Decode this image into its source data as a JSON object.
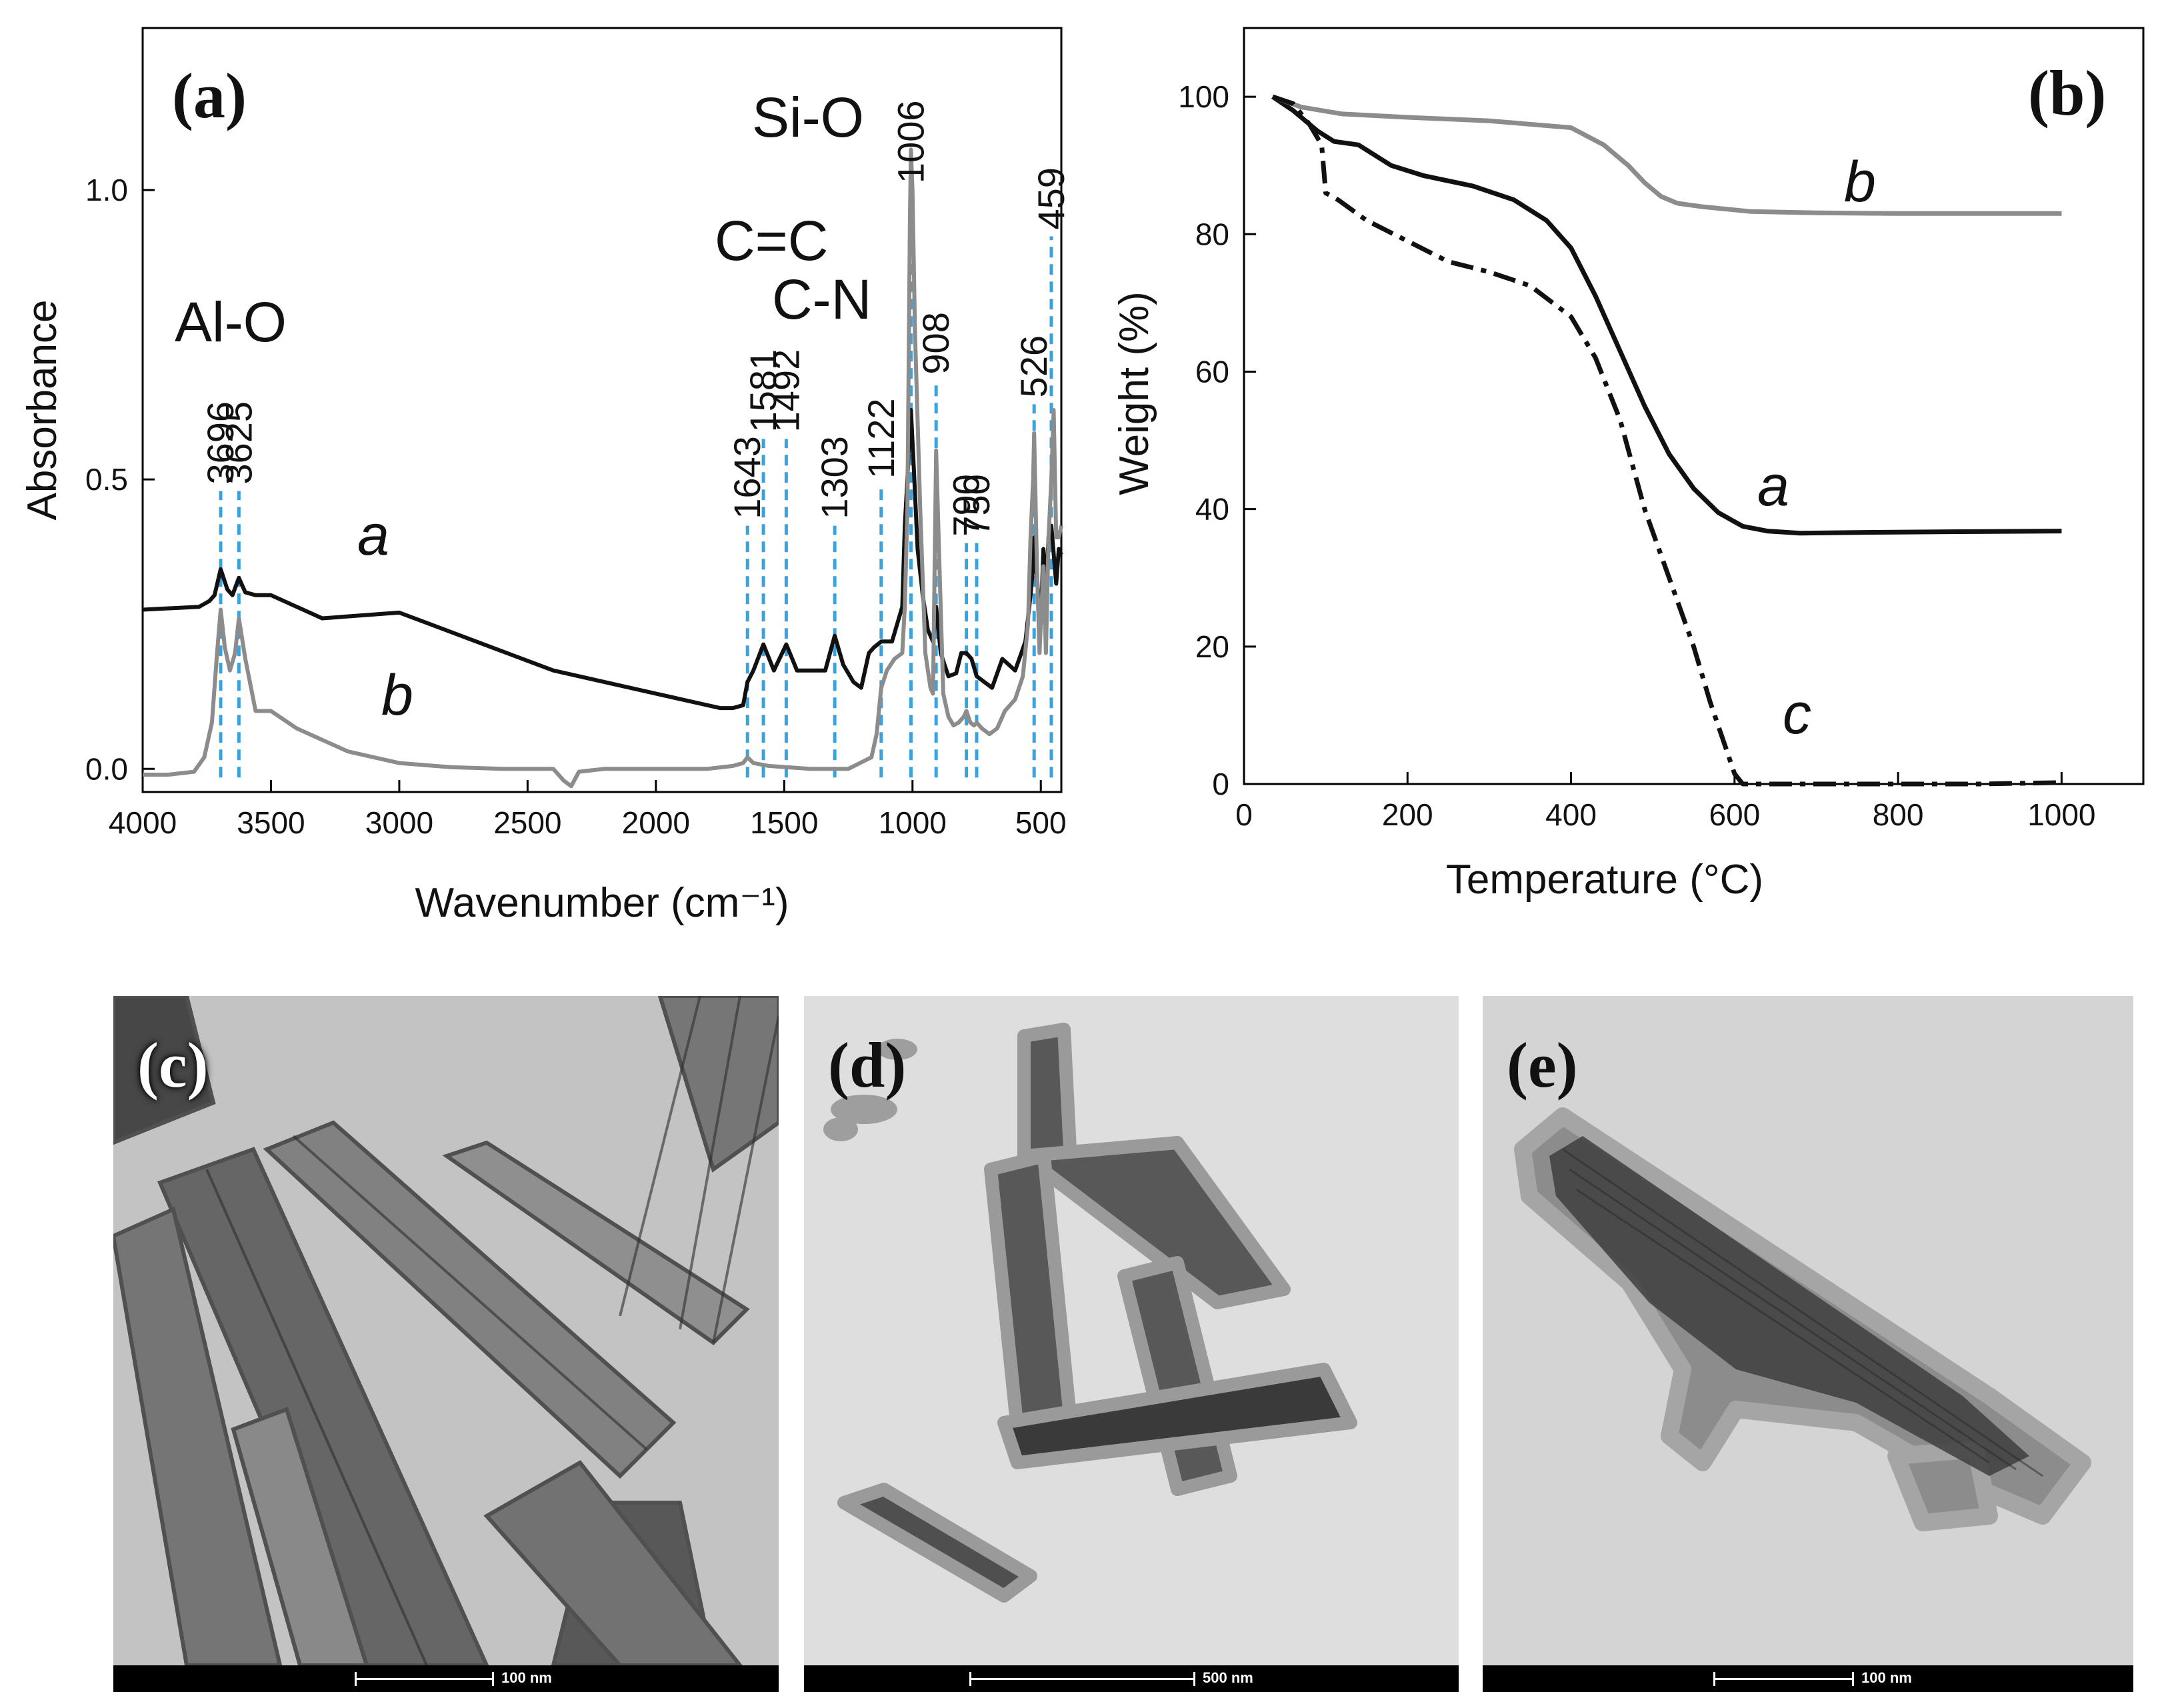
{
  "chart_data": [
    {
      "panel": "(a)",
      "type": "line",
      "xlabel": "Wavenumber (cm⁻¹)",
      "ylabel": "Absorbance",
      "xlim": [
        4000,
        420
      ],
      "ylim": [
        -0.04,
        1.28
      ],
      "x_ticks": [
        "4000",
        "3500",
        "3000",
        "2500",
        "2000",
        "1500",
        "1000",
        "500"
      ],
      "y_ticks": [
        "0.0",
        "0.5",
        "1.0"
      ],
      "series": [
        {
          "name": "a",
          "color": "#111111",
          "x": [
            4000,
            3780,
            3740,
            3720,
            3696,
            3670,
            3650,
            3625,
            3600,
            3560,
            3500,
            3300,
            3000,
            2700,
            2400,
            2000,
            1750,
            1700,
            1660,
            1643,
            1620,
            1581,
            1540,
            1492,
            1450,
            1400,
            1340,
            1303,
            1270,
            1230,
            1200,
            1170,
            1150,
            1122,
            1080,
            1040,
            1030,
            1020,
            1010,
            1006,
            995,
            980,
            960,
            940,
            920,
            908,
            890,
            860,
            830,
            810,
            790,
            770,
            750,
            720,
            690,
            650,
            600,
            560,
            540,
            530,
            526,
            515,
            500,
            490,
            480,
            470,
            459,
            440,
            430,
            420
          ],
          "y": [
            0.275,
            0.28,
            0.29,
            0.3,
            0.345,
            0.31,
            0.3,
            0.33,
            0.305,
            0.3,
            0.3,
            0.26,
            0.27,
            0.22,
            0.17,
            0.13,
            0.105,
            0.105,
            0.11,
            0.15,
            0.17,
            0.215,
            0.17,
            0.215,
            0.17,
            0.17,
            0.17,
            0.23,
            0.18,
            0.15,
            0.14,
            0.2,
            0.21,
            0.22,
            0.22,
            0.28,
            0.42,
            0.5,
            0.6,
            0.62,
            0.52,
            0.38,
            0.3,
            0.24,
            0.22,
            0.28,
            0.2,
            0.16,
            0.165,
            0.2,
            0.2,
            0.19,
            0.16,
            0.15,
            0.14,
            0.19,
            0.17,
            0.22,
            0.3,
            0.35,
            0.4,
            0.33,
            0.25,
            0.38,
            0.3,
            0.4,
            0.42,
            0.32,
            0.38,
            0.37
          ]
        },
        {
          "name": "b",
          "color": "#8c8c8c",
          "x": [
            4000,
            3900,
            3800,
            3760,
            3730,
            3710,
            3696,
            3680,
            3660,
            3640,
            3625,
            3600,
            3560,
            3500,
            3400,
            3200,
            3000,
            2800,
            2600,
            2400,
            2360,
            2330,
            2300,
            2200,
            2000,
            1800,
            1700,
            1660,
            1643,
            1620,
            1560,
            1400,
            1250,
            1160,
            1140,
            1122,
            1100,
            1070,
            1040,
            1030,
            1020,
            1015,
            1010,
            1006,
            1000,
            990,
            970,
            950,
            930,
            920,
            908,
            895,
            880,
            860,
            840,
            820,
            800,
            790,
            775,
            760,
            750,
            730,
            700,
            670,
            640,
            600,
            570,
            550,
            540,
            530,
            526,
            515,
            505,
            500,
            490,
            480,
            470,
            459,
            450,
            440,
            430,
            420
          ],
          "y": [
            -0.01,
            -0.01,
            -0.005,
            0.02,
            0.08,
            0.2,
            0.275,
            0.21,
            0.17,
            0.2,
            0.26,
            0.19,
            0.1,
            0.1,
            0.07,
            0.03,
            0.01,
            0.003,
            0.0,
            0.0,
            -0.02,
            -0.03,
            -0.005,
            0.0,
            0.0,
            0.0,
            0.005,
            0.01,
            0.02,
            0.01,
            0.005,
            0.0,
            0.0,
            0.02,
            0.06,
            0.14,
            0.17,
            0.19,
            0.2,
            0.28,
            0.45,
            0.7,
            0.95,
            1.07,
            1.0,
            0.75,
            0.45,
            0.2,
            0.14,
            0.13,
            0.55,
            0.35,
            0.13,
            0.09,
            0.075,
            0.08,
            0.09,
            0.1,
            0.08,
            0.075,
            0.08,
            0.07,
            0.06,
            0.07,
            0.1,
            0.12,
            0.16,
            0.25,
            0.4,
            0.5,
            0.58,
            0.35,
            0.2,
            0.25,
            0.35,
            0.2,
            0.4,
            0.5,
            0.62,
            0.4,
            0.4,
            0.42
          ]
        }
      ],
      "peaks": [
        {
          "label": "3696",
          "x": 3696,
          "line_top": 0.48
        },
        {
          "label": "3625",
          "x": 3625,
          "line_top": 0.48
        },
        {
          "label": "1643",
          "x": 1643,
          "line_top": 0.42
        },
        {
          "label": "1581",
          "x": 1581,
          "line_top": 0.57
        },
        {
          "label": "1492",
          "x": 1492,
          "line_top": 0.57
        },
        {
          "label": "1303",
          "x": 1303,
          "line_top": 0.42
        },
        {
          "label": "1122",
          "x": 1122,
          "line_top": 0.49
        },
        {
          "label": "1006",
          "x": 1006,
          "line_top": 1.0
        },
        {
          "label": "908",
          "x": 908,
          "line_top": 0.67
        },
        {
          "label": "790",
          "x": 790,
          "line_top": 0.39
        },
        {
          "label": "750",
          "x": 750,
          "line_top": 0.39
        },
        {
          "label": "526",
          "x": 526,
          "line_top": 0.63
        },
        {
          "label": "459",
          "x": 459,
          "line_top": 0.92
        }
      ],
      "group_labels": [
        "Al-O",
        "C=C",
        "C-N",
        "Si-O"
      ],
      "curve_labels": [
        "a",
        "b"
      ]
    },
    {
      "panel": "(b)",
      "type": "line",
      "xlabel": "Temperature (°C)",
      "ylabel": "Weight (%)",
      "xlim": [
        0,
        1100
      ],
      "ylim": [
        0,
        110
      ],
      "x_ticks": [
        "0",
        "200",
        "400",
        "600",
        "800",
        "1000"
      ],
      "y_ticks": [
        "0",
        "20",
        "40",
        "60",
        "80",
        "100"
      ],
      "series": [
        {
          "name": "a",
          "color": "#111111",
          "style": "solid",
          "x": [
            35,
            60,
            90,
            110,
            140,
            180,
            220,
            280,
            330,
            370,
            400,
            430,
            460,
            490,
            520,
            550,
            580,
            610,
            640,
            680,
            750,
            850,
            1000
          ],
          "y": [
            100,
            98,
            95,
            93.5,
            93,
            90,
            88.5,
            87,
            85,
            82,
            78,
            71,
            63,
            55,
            48,
            43,
            39.5,
            37.5,
            36.8,
            36.5,
            36.6,
            36.7,
            36.8
          ]
        },
        {
          "name": "b",
          "color": "#8c8c8c",
          "style": "solid",
          "x": [
            35,
            70,
            120,
            200,
            300,
            400,
            440,
            470,
            490,
            510,
            530,
            560,
            620,
            700,
            800,
            900,
            1000
          ],
          "y": [
            100,
            98.5,
            97.5,
            97,
            96.5,
            95.5,
            93,
            90,
            87.5,
            85.5,
            84.5,
            84,
            83.3,
            83.1,
            83,
            83,
            83
          ]
        },
        {
          "name": "c",
          "color": "#111111",
          "style": "dashdot",
          "x": [
            35,
            60,
            80,
            95,
            100,
            115,
            150,
            200,
            250,
            300,
            350,
            400,
            430,
            460,
            490,
            520,
            550,
            570,
            590,
            600,
            610,
            650,
            700,
            800,
            900,
            1000
          ],
          "y": [
            100,
            99,
            96,
            93,
            86,
            85,
            82,
            79,
            76,
            74.5,
            72.5,
            68,
            62,
            53,
            40,
            30,
            20,
            12,
            5,
            1.5,
            0,
            0,
            0,
            0,
            0,
            0.2
          ]
        }
      ],
      "curve_labels": [
        "a",
        "b",
        "c"
      ]
    }
  ],
  "tem_panels": [
    {
      "label": "(c)",
      "scale": "100 nm"
    },
    {
      "label": "(d)",
      "scale": "500 nm"
    },
    {
      "label": "(e)",
      "scale": "100 nm"
    }
  ]
}
